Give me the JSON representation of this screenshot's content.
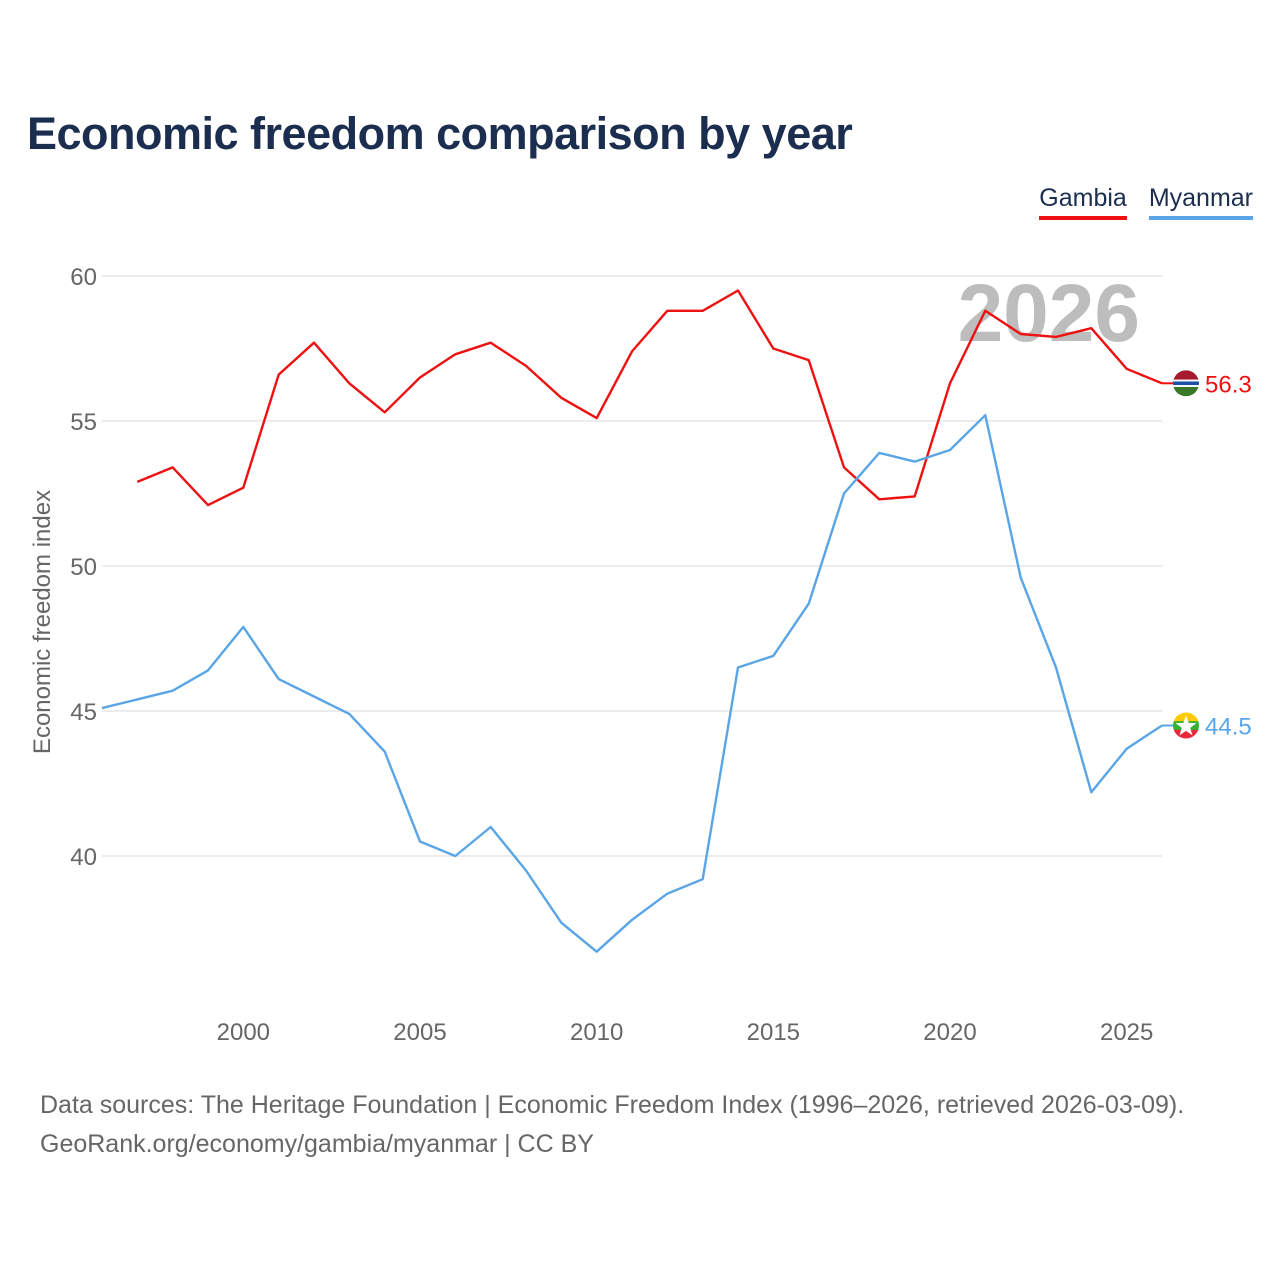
{
  "colors": {
    "title": "#1b2e4f",
    "grid": "#e6e6e6",
    "axis_text": "#666666",
    "year_watermark": "#bdbdbd"
  },
  "chart_data": {
    "type": "line",
    "title": "Economic freedom comparison by year",
    "ylabel": "Economic freedom index",
    "xlabel": "",
    "year_watermark": "2026",
    "xlim": [
      1996,
      2026
    ],
    "ylim": [
      33,
      62
    ],
    "yticks": [
      40,
      45,
      50,
      55,
      60
    ],
    "xticks": [
      2000,
      2005,
      2010,
      2015,
      2020,
      2025
    ],
    "grid": true,
    "legend_position": "top-right",
    "series": [
      {
        "name": "Gambia",
        "color": "#ee1111",
        "flag": "gambia",
        "end_label": "56.3",
        "x": [
          1997,
          1998,
          1999,
          2000,
          2001,
          2002,
          2003,
          2004,
          2005,
          2006,
          2007,
          2008,
          2009,
          2010,
          2011,
          2012,
          2013,
          2014,
          2015,
          2016,
          2017,
          2018,
          2019,
          2020,
          2021,
          2022,
          2023,
          2024,
          2025,
          2026
        ],
        "values": [
          52.9,
          53.4,
          52.1,
          52.7,
          56.6,
          57.7,
          56.3,
          55.3,
          56.5,
          57.3,
          57.7,
          56.9,
          55.8,
          55.1,
          57.4,
          58.8,
          58.8,
          59.5,
          57.5,
          57.1,
          53.4,
          52.3,
          52.4,
          56.3,
          58.8,
          58.0,
          57.9,
          58.2,
          56.8,
          56.3
        ]
      },
      {
        "name": "Myanmar",
        "color": "#5aa5e6",
        "flag": "myanmar",
        "end_label": "44.5",
        "x": [
          1996,
          1997,
          1998,
          1999,
          2000,
          2001,
          2002,
          2003,
          2004,
          2005,
          2006,
          2007,
          2008,
          2009,
          2010,
          2011,
          2012,
          2013,
          2014,
          2015,
          2016,
          2017,
          2018,
          2019,
          2020,
          2021,
          2022,
          2023,
          2024,
          2025,
          2026
        ],
        "values": [
          45.1,
          45.4,
          45.7,
          46.4,
          47.9,
          46.1,
          45.5,
          44.9,
          43.6,
          40.5,
          40.0,
          41.0,
          39.5,
          37.7,
          36.7,
          37.8,
          38.7,
          39.2,
          46.5,
          46.9,
          48.7,
          52.5,
          53.9,
          53.6,
          54.0,
          55.2,
          49.6,
          46.5,
          42.2,
          43.7,
          44.5
        ]
      }
    ]
  },
  "footer": {
    "line1": "Data sources: The Heritage Foundation | Economic Freedom Index (1996–2026, retrieved 2026-03-09).",
    "line2": "GeoRank.org/economy/gambia/myanmar | CC BY"
  }
}
